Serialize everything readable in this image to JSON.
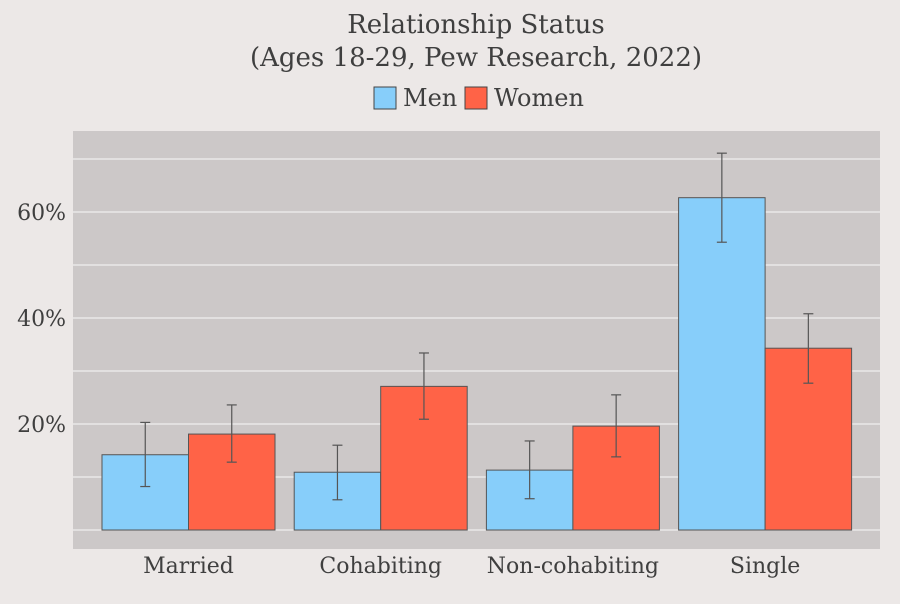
{
  "chart_data": {
    "type": "bar",
    "title": "Relationship Status",
    "subtitle": "(Ages 18-29, Pew Research, 2022)",
    "xlabel": "",
    "ylabel": "",
    "categories": [
      "Married",
      "Cohabiting",
      "Non-cohabiting",
      "Single"
    ],
    "series": [
      {
        "name": "Men",
        "color": "#87cefa",
        "values": [
          14.2,
          10.9,
          11.3,
          62.7
        ],
        "error_low": [
          8.2,
          5.7,
          5.9,
          54.3
        ],
        "error_high": [
          20.3,
          16.0,
          16.8,
          71.1
        ]
      },
      {
        "name": "Women",
        "color": "#ff6347",
        "values": [
          18.1,
          27.1,
          19.6,
          34.3
        ],
        "error_low": [
          12.8,
          20.9,
          13.8,
          27.7
        ],
        "error_high": [
          23.6,
          33.4,
          25.5,
          40.8
        ]
      }
    ],
    "ylim": [
      -3.5,
      75
    ],
    "yticks": [
      20,
      40,
      60
    ],
    "ytick_labels": [
      "20%",
      "40%",
      "60%"
    ],
    "grid": true,
    "legend_position": "top-center",
    "plot_background": "#ccc8c8",
    "error_bar_color": "#555555"
  }
}
